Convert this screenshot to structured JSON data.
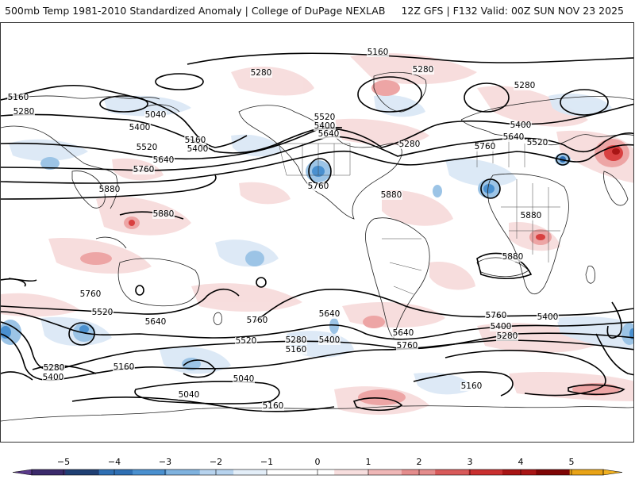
{
  "header": {
    "title_left": "500mb Temp 1981-2010 Standardized Anomaly | College of DuPage NEXLAB",
    "title_right": "12Z GFS | F132 Valid: 00Z SUN NOV 23 2025"
  },
  "map": {
    "height_labels": [
      "5160",
      "5280",
      "5280",
      "5280",
      "5160",
      "5400",
      "5040",
      "5280",
      "5520",
      "5160",
      "5400",
      "5400",
      "5520",
      "5640",
      "5280",
      "5400",
      "5640",
      "5760",
      "5520",
      "5640",
      "5760",
      "5760",
      "5880",
      "5880",
      "5880",
      "5880",
      "5880",
      "5760",
      "5760",
      "5640",
      "5640",
      "5760",
      "5400",
      "5280",
      "5400",
      "5520",
      "5640",
      "5760",
      "5520",
      "5280",
      "5160",
      "5400",
      "5280",
      "5400",
      "5160",
      "5040",
      "5040",
      "5160",
      "5160"
    ],
    "colors": {
      "cold_light": "#dbe8f6",
      "cold_mid": "#9cc4e6",
      "cold_strong": "#4a90cf",
      "warm_light": "#f7dcdc",
      "warm_mid": "#eda5a5",
      "warm_strong": "#d84040",
      "contour": "#000000",
      "coast": "#222222"
    }
  },
  "colorbar": {
    "tick_labels": [
      "−5",
      "−4",
      "−3",
      "−2",
      "−1",
      "0",
      "1",
      "2",
      "3",
      "4",
      "5"
    ],
    "segment_colors": [
      "#3b2a6b",
      "#1f3f73",
      "#2f6fb3",
      "#4a90cf",
      "#7fb2de",
      "#b7d3ee",
      "#e3eef8",
      "#ffffff",
      "#ffffff",
      "#f7dede",
      "#efb7b7",
      "#e48c8c",
      "#d85a5a",
      "#c93030",
      "#a81515",
      "#7e0505",
      "#e8a317"
    ]
  }
}
